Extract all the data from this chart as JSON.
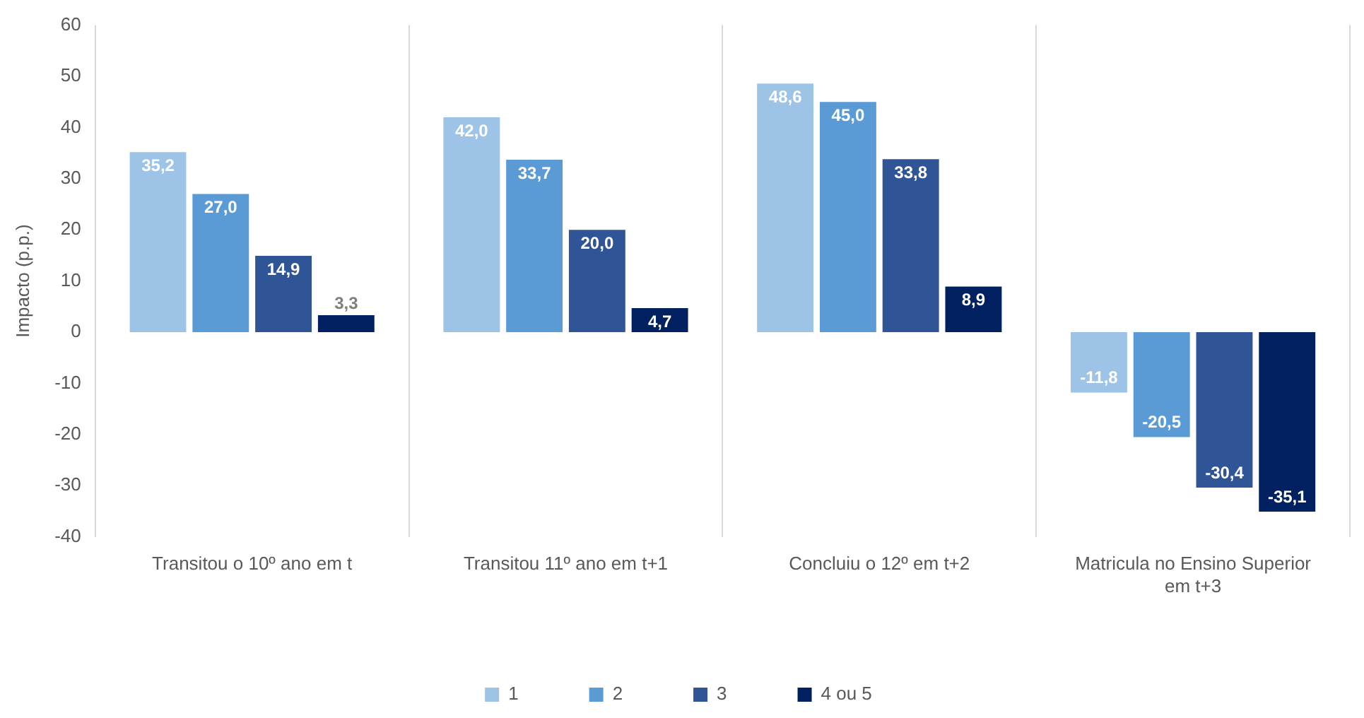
{
  "chart_data": {
    "type": "bar",
    "ylabel": "Impacto (p.p.)",
    "categories": [
      "Transitou o 10º ano em t",
      "Transitou 11º ano em t+1",
      "Concluiu o 12º em t+2",
      "Matricula no Ensino Superior em t+3"
    ],
    "series": [
      {
        "name": "1",
        "color": "#9dc3e6",
        "values": [
          35.2,
          42.0,
          48.6,
          -11.8
        ],
        "value_labels": [
          "35,2",
          "42,0",
          "48,6",
          "-11,8"
        ]
      },
      {
        "name": "2",
        "color": "#5b9bd5",
        "values": [
          27.0,
          33.7,
          45.0,
          -20.5
        ],
        "value_labels": [
          "27,0",
          "33,7",
          "45,0",
          "-20,5"
        ]
      },
      {
        "name": "3",
        "color": "#2f5597",
        "values": [
          14.9,
          20.0,
          33.8,
          -30.4
        ],
        "value_labels": [
          "14,9",
          "20,0",
          "33,8",
          "-30,4"
        ]
      },
      {
        "name": "4 ou 5",
        "color": "#002060",
        "values": [
          3.3,
          4.7,
          8.9,
          -35.1
        ],
        "value_labels": [
          "3,3",
          "4,7",
          "8,9",
          "-35,1"
        ]
      }
    ],
    "ylim": [
      -40,
      60
    ],
    "yticks": [
      -40,
      -30,
      -20,
      -10,
      0,
      10,
      20,
      30,
      40,
      50,
      60
    ],
    "grid": "x",
    "legend": "bottom"
  }
}
